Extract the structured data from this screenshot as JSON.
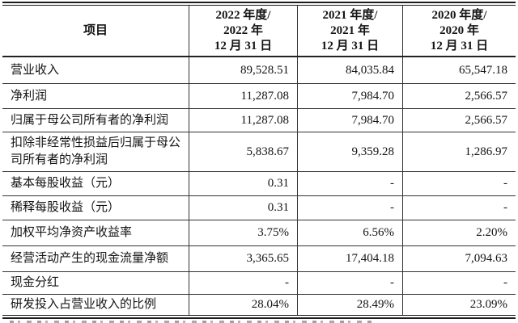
{
  "table": {
    "header": {
      "item": "项目",
      "y2022": {
        "l1": "2022 年度/",
        "l2": "2022 年",
        "l3": "12 月 31 日"
      },
      "y2021": {
        "l1": "2021 年度/",
        "l2": "2021 年",
        "l3": "12 月 31 日"
      },
      "y2020": {
        "l1": "2020 年度/",
        "l2": "2020 年",
        "l3": "12 月 31 日"
      }
    },
    "rows": [
      {
        "label": "营业收入",
        "y2022": "89,528.51",
        "y2021": "84,035.84",
        "y2020": "65,547.18"
      },
      {
        "label": "净利润",
        "y2022": "11,287.08",
        "y2021": "7,984.70",
        "y2020": "2,566.57"
      },
      {
        "label": "归属于母公司所有者的净利润",
        "y2022": "11,287.08",
        "y2021": "7,984.70",
        "y2020": "2,566.57"
      },
      {
        "label": "扣除非经常性损益后归属于母公司所有者的净利润",
        "y2022": "5,838.67",
        "y2021": "9,359.28",
        "y2020": "1,286.97"
      },
      {
        "label": "基本每股收益（元）",
        "y2022": "0.31",
        "y2021": "-",
        "y2020": "-"
      },
      {
        "label": "稀释每股收益（元）",
        "y2022": "0.31",
        "y2021": "-",
        "y2020": "-"
      },
      {
        "label": "加权平均净资产收益率",
        "y2022": "3.75%",
        "y2021": "6.56%",
        "y2020": "2.20%"
      },
      {
        "label": "经营活动产生的现金流量净额",
        "y2022": "3,365.65",
        "y2021": "17,404.18",
        "y2020": "7,094.63"
      },
      {
        "label": "现金分红",
        "y2022": "-",
        "y2021": "-",
        "y2020": "-"
      },
      {
        "label": "研发投入占营业收入的比例",
        "y2022": "28.04%",
        "y2021": "28.49%",
        "y2020": "23.09%"
      }
    ]
  },
  "colors": {
    "rule": "#1c1c1c",
    "grid_line": "#333333",
    "text": "#141414",
    "background": "#ffffff",
    "remnant_text": "#8f8f8f"
  }
}
